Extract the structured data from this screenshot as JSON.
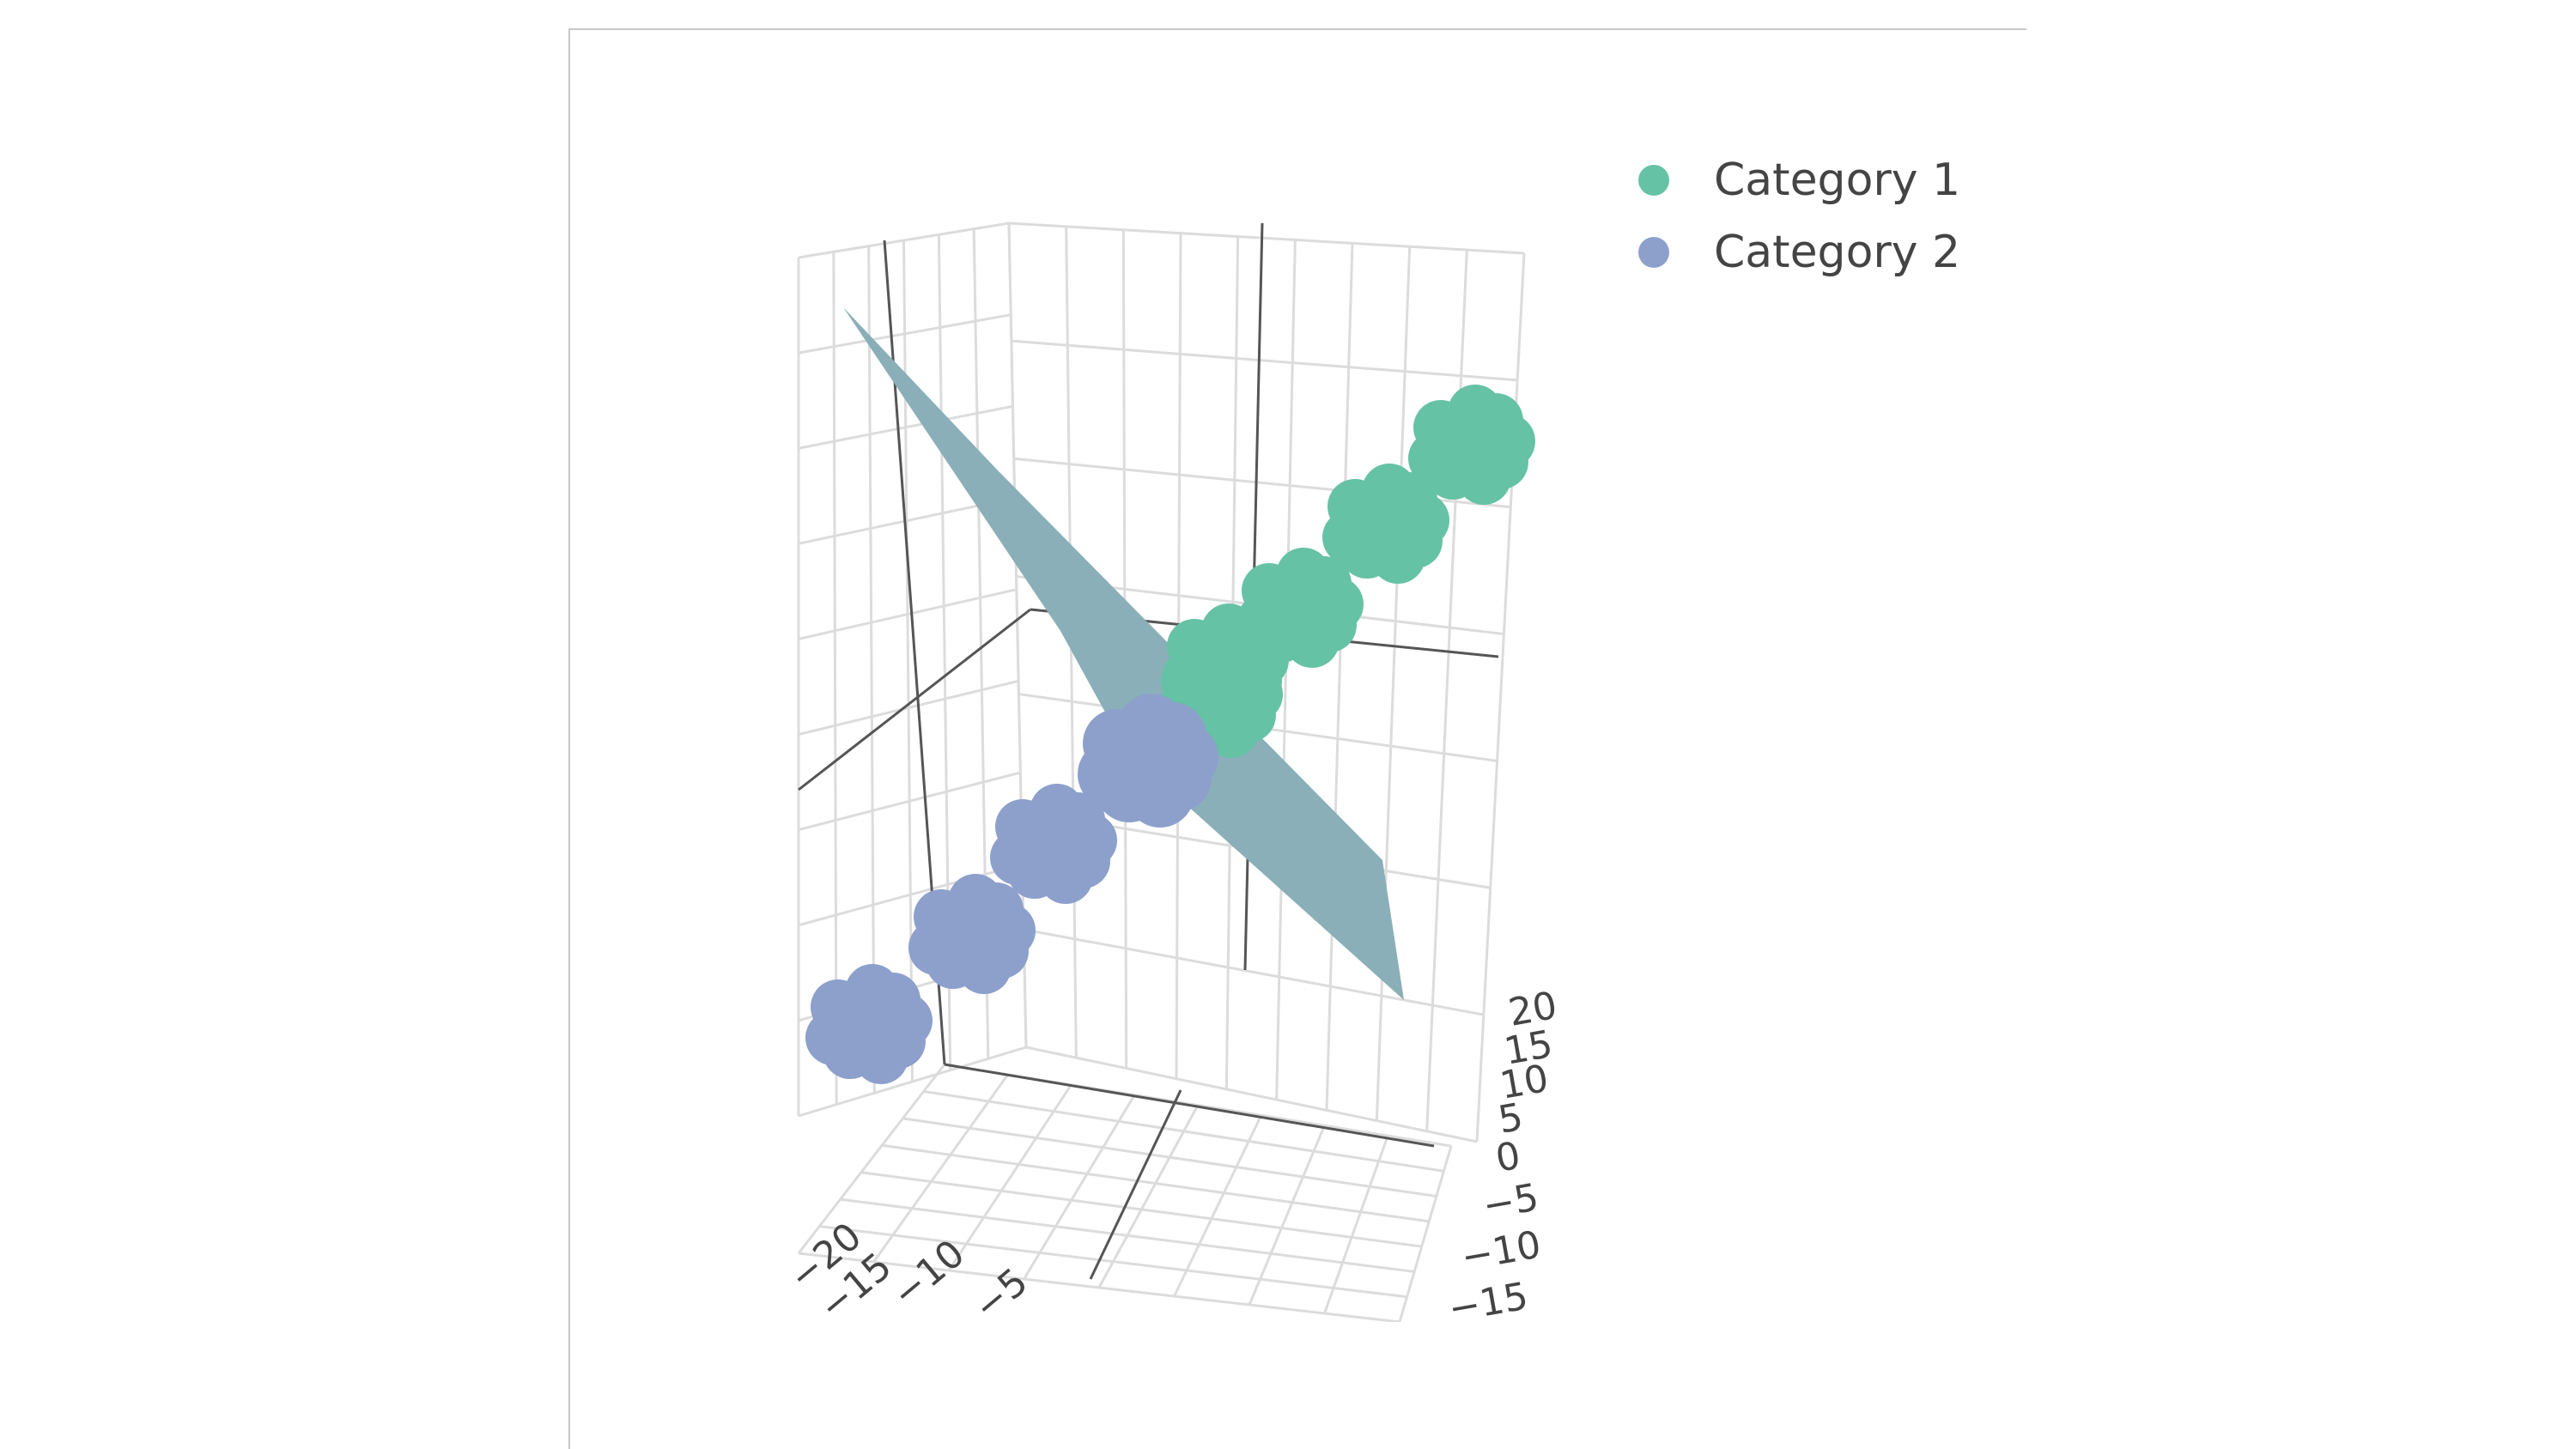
{
  "chart_data": {
    "type": "scatter3d",
    "title": "",
    "legend_position": "top-right",
    "series": [
      {
        "name": "Category 1",
        "color": "#66c2a5",
        "marker": "circle",
        "clusters": [
          {
            "x": 0,
            "y": 0,
            "z": 2
          },
          {
            "x": 5,
            "y": 5,
            "z": 6
          },
          {
            "x": 10,
            "y": 10,
            "z": 10
          },
          {
            "x": 15,
            "y": 15,
            "z": 14
          },
          {
            "x": 20,
            "y": 20,
            "z": 18
          }
        ]
      },
      {
        "name": "Category 2",
        "color": "#8da0cb",
        "marker": "circle",
        "clusters": [
          {
            "x": -5,
            "y": -5,
            "z": -2
          },
          {
            "x": -10,
            "y": -10,
            "z": -6
          },
          {
            "x": -15,
            "y": -15,
            "z": -10
          },
          {
            "x": -20,
            "y": -20,
            "z": -14
          }
        ]
      }
    ],
    "surface": {
      "name": "separating plane",
      "color": "#8aafb9",
      "showlegend": false
    },
    "axes": {
      "front_right_ticks": [
        "20",
        "15",
        "10",
        "5",
        "0",
        "−5",
        "−10",
        "−15"
      ],
      "front_left_ticks": [
        "−20",
        "−15",
        "−10",
        "−5"
      ]
    },
    "grid": true
  }
}
